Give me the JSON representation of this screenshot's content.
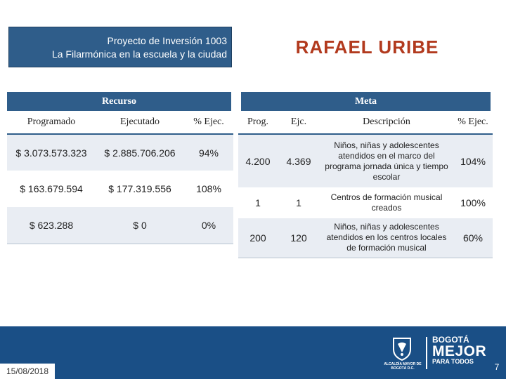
{
  "header": {
    "project_line1": "Proyecto de Inversión 1003",
    "project_line2": "La Filarmónica en la escuela y la ciudad",
    "locality": "RAFAEL URIBE"
  },
  "recurso": {
    "title": "Recurso",
    "columns": [
      "Programado",
      "Ejecutado",
      "% Ejec."
    ],
    "rows": [
      [
        "$ 3.073.573.323",
        "$ 2.885.706.206",
        "94%"
      ],
      [
        "$ 163.679.594",
        "$ 177.319.556",
        "108%"
      ],
      [
        "$ 623.288",
        "$ 0",
        "0%"
      ]
    ]
  },
  "meta": {
    "title": "Meta",
    "columns": [
      "Prog.",
      "Ejc.",
      "Descripción",
      "% Ejec."
    ],
    "rows": [
      [
        "4.200",
        "4.369",
        "Niños, niñas y adolescentes atendidos en el marco del programa jornada única y tiempo escolar",
        "104%"
      ],
      [
        "1",
        "1",
        "Centros de formación musical creados",
        "100%"
      ],
      [
        "200",
        "120",
        "Niños, niñas y adolescentes atendidos en los centros locales de formación musical",
        "60%"
      ]
    ]
  },
  "footer": {
    "date": "15/08/2018",
    "alcaldia_text": "ALCALDÍA MAYOR DE BOGOTÁ D.C.",
    "brand_line1": "BOGOTÁ",
    "brand_line2": "MEJOR",
    "brand_line3": "PARA TODOS",
    "page_number": "7",
    "colors": {
      "primary": "#2f5d8a",
      "footer": "#1a4f86",
      "locality": "#b23a1e"
    }
  }
}
